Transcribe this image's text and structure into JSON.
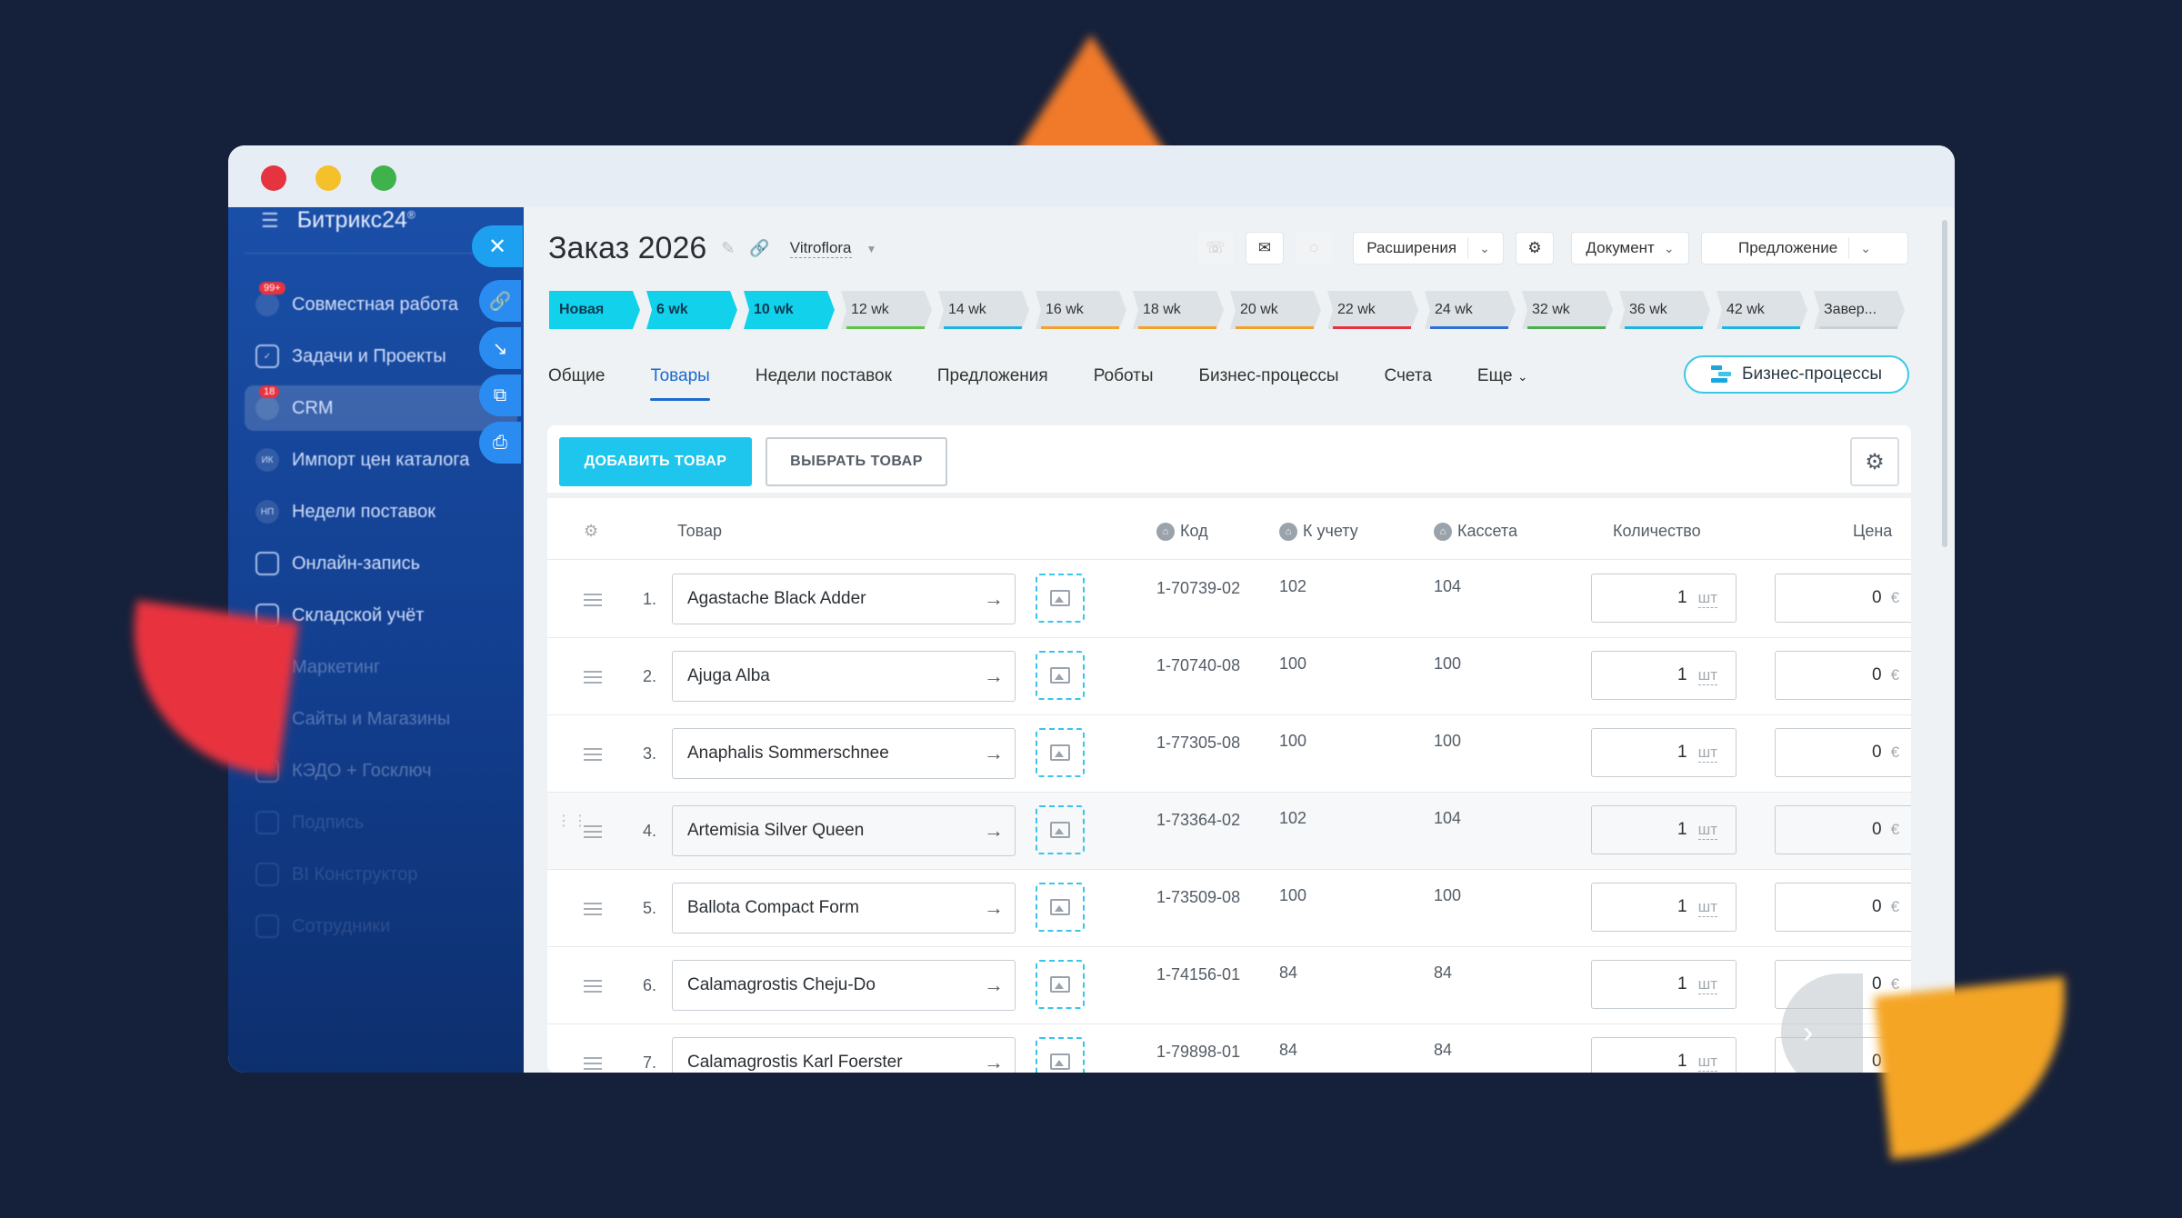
{
  "sidebar": {
    "brand": "Битрикс24",
    "brand_mark": "®",
    "items": [
      {
        "label": "Совместная работа",
        "badge": "99+"
      },
      {
        "label": "Задачи и Проекты"
      },
      {
        "label": "CRM",
        "badge": "18"
      },
      {
        "label": "Импорт цен каталога",
        "abbr": "ИК"
      },
      {
        "label": "Недели поставок",
        "abbr": "НП"
      },
      {
        "label": "Онлайн-запись"
      },
      {
        "label": "Складской учёт"
      },
      {
        "label": "Маркетинг"
      },
      {
        "label": "Сайты и Магазины"
      },
      {
        "label": "КЭДО + Госключ"
      },
      {
        "label": "Подпись"
      },
      {
        "label": "BI Конструктор"
      },
      {
        "label": "Сотрудники"
      }
    ]
  },
  "header": {
    "title": "Заказ 2026",
    "company": "Vitroflora",
    "extensions": "Расширения",
    "document": "Документ",
    "proposal": "Предложение"
  },
  "stages": [
    {
      "label": "Новая",
      "done": true,
      "color": "#12d1eb"
    },
    {
      "label": "6 wk",
      "done": true,
      "color": "#12d1eb"
    },
    {
      "label": "10 wk",
      "done": true,
      "color": "#12d1eb"
    },
    {
      "label": "12 wk",
      "color": "#5fc44a"
    },
    {
      "label": "14 wk",
      "color": "#1fb4e0"
    },
    {
      "label": "16 wk",
      "color": "#f2a12a"
    },
    {
      "label": "18 wk",
      "color": "#f2a12a"
    },
    {
      "label": "20 wk",
      "color": "#f2a12a"
    },
    {
      "label": "22 wk",
      "color": "#e6333f"
    },
    {
      "label": "24 wk",
      "color": "#2f6fd6"
    },
    {
      "label": "32 wk",
      "color": "#4caf50"
    },
    {
      "label": "36 wk",
      "color": "#1fb4e0"
    },
    {
      "label": "42 wk",
      "color": "#1fb4e0"
    },
    {
      "label": "Завер...",
      "color": "#c9d0d6"
    }
  ],
  "tabs": [
    "Общие",
    "Товары",
    "Недели поставок",
    "Предложения",
    "Роботы",
    "Бизнес-процессы",
    "Счета",
    "Еще"
  ],
  "active_tab": "Товары",
  "bp_button": "Бизнес-процессы",
  "toolbar": {
    "add_label": "ДОБАВИТЬ ТОВАР",
    "pick_label": "ВЫБРАТЬ ТОВАР"
  },
  "columns": {
    "product": "Товар",
    "code": "Код",
    "account": "К учету",
    "cassette": "Кассета",
    "quantity": "Количество",
    "price": "Цена"
  },
  "rows": [
    {
      "num": "1.",
      "name": "Agastache Black Adder",
      "code": "1-70739-02",
      "account": "102",
      "cassette": "104",
      "qty": "1",
      "unit": "шт",
      "price": "0",
      "currency": "€"
    },
    {
      "num": "2.",
      "name": "Ajuga Alba",
      "code": "1-70740-08",
      "account": "100",
      "cassette": "100",
      "qty": "1",
      "unit": "шт",
      "price": "0",
      "currency": "€"
    },
    {
      "num": "3.",
      "name": "Anaphalis Sommerschnee",
      "code": "1-77305-08",
      "account": "100",
      "cassette": "100",
      "qty": "1",
      "unit": "шт",
      "price": "0",
      "currency": "€"
    },
    {
      "num": "4.",
      "name": "Artemisia Silver Queen",
      "code": "1-73364-02",
      "account": "102",
      "cassette": "104",
      "qty": "1",
      "unit": "шт",
      "price": "0",
      "currency": "€"
    },
    {
      "num": "5.",
      "name": "Ballota Compact Form",
      "code": "1-73509-08",
      "account": "100",
      "cassette": "100",
      "qty": "1",
      "unit": "шт",
      "price": "0",
      "currency": "€"
    },
    {
      "num": "6.",
      "name": "Calamagrostis Cheju-Do",
      "code": "1-74156-01",
      "account": "84",
      "cassette": "84",
      "qty": "1",
      "unit": "шт",
      "price": "0",
      "currency": "€"
    },
    {
      "num": "7.",
      "name": "Calamagrostis Karl Foerster",
      "code": "1-79898-01",
      "account": "84",
      "cassette": "84",
      "qty": "1",
      "unit": "шт",
      "price": "0",
      "currency": "€"
    }
  ]
}
